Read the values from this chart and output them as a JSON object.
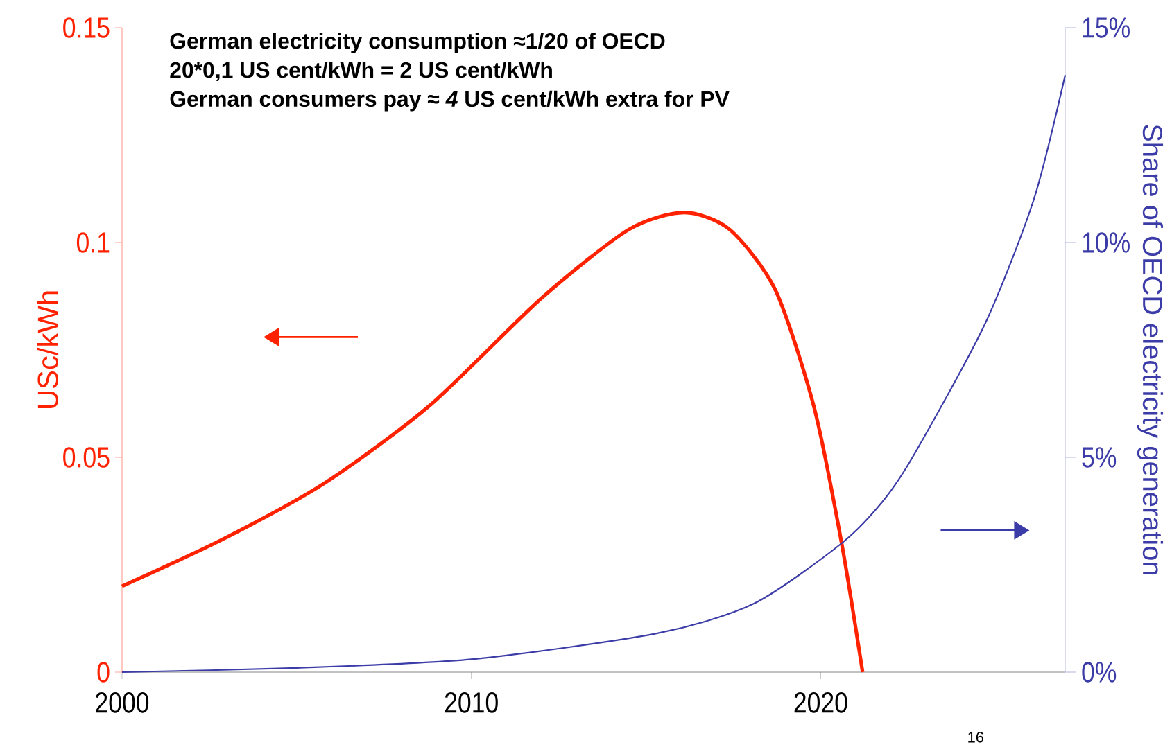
{
  "chart_data": {
    "type": "line",
    "ylabel": "USc/kWh",
    "y2label": "Share of OECD electricity generation",
    "annotations": [
      "**German electricity consumption ≈1/20 of OECD**",
      "**20*0,1 US cent/kWh = 2 US cent/kWh**",
      "**German consumers pay ≈ *4* US cent/kWh extra for PV**",
      "16"
    ],
    "xlim": [
      2000,
      2027
    ],
    "xticks": [
      2000,
      2010,
      2020
    ],
    "ylim": [
      0,
      0.15
    ],
    "yticks": [
      0,
      0.05,
      0.1,
      0.15
    ],
    "y2lim": [
      0,
      15
    ],
    "y2ticks": [
      {
        "value": 0,
        "label": "0%"
      },
      {
        "value": 5,
        "label": "5%"
      },
      {
        "value": 10,
        "label": "10%"
      },
      {
        "value": 15,
        "label": "15%"
      }
    ],
    "series": [
      {
        "color": "#ff2200",
        "x": [
          2000,
          2002.9,
          2005.8,
          2008.8,
          2012.0,
          2014.5,
          2016.1,
          2017.4,
          2018.7,
          2019.8,
          2020.6,
          2021.2
        ],
        "values": [
          0.02,
          0.031,
          0.044,
          0.062,
          0.087,
          0.103,
          0.107,
          0.103,
          0.089,
          0.062,
          0.03,
          0.0
        ]
      },
      {
        "color": "#3c3ca8",
        "axis": "y2",
        "x": [
          2000,
          2005,
          2010,
          2015.3,
          2018.1,
          2020.6,
          2021.8,
          2022.7,
          2024.7,
          2026.1,
          2027.0
        ],
        "values": [
          0,
          0.1,
          0.3,
          0.9,
          1.6,
          3.0,
          4.0,
          5.1,
          8.1,
          11.0,
          13.9
        ]
      }
    ]
  }
}
